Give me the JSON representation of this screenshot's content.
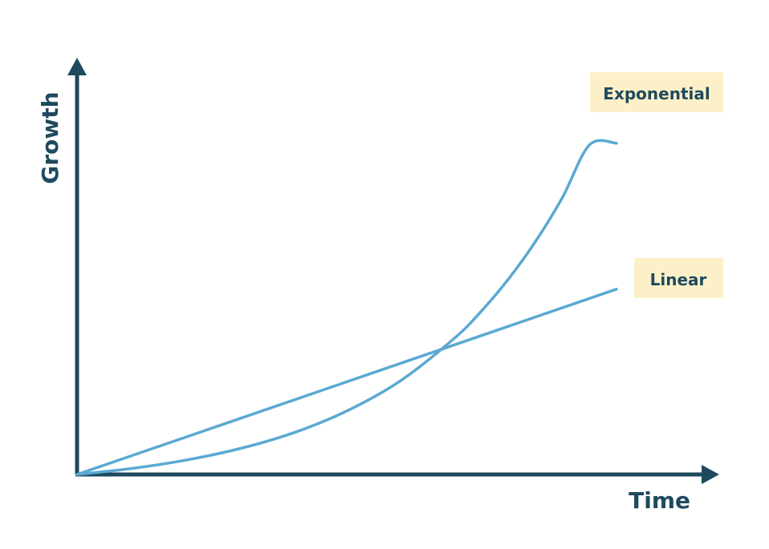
{
  "colors": {
    "axis": "#1e4a5e",
    "line": "#5aa9d2",
    "label_bg": "#fdf0c8",
    "label_text": "#1e4a5e"
  },
  "chart_data": {
    "type": "line",
    "title": "",
    "xlabel": "Time",
    "ylabel": "Growth",
    "grid": false,
    "xlim": [
      0,
      100
    ],
    "ylim": [
      0,
      100
    ],
    "series": [
      {
        "name": "Linear",
        "label_position": "end",
        "x": [
          0,
          100
        ],
        "y": [
          0,
          47
        ]
      },
      {
        "name": "Exponential",
        "label_position": "end",
        "x": [
          0,
          10,
          20,
          30,
          40,
          50,
          60,
          70,
          75,
          80,
          85,
          90,
          95,
          100
        ],
        "y": [
          0,
          1.5,
          3.6,
          6.5,
          10.5,
          16.1,
          23.8,
          34.6,
          41.5,
          49.6,
          59.1,
          70.3,
          83.6,
          84
        ]
      }
    ]
  }
}
